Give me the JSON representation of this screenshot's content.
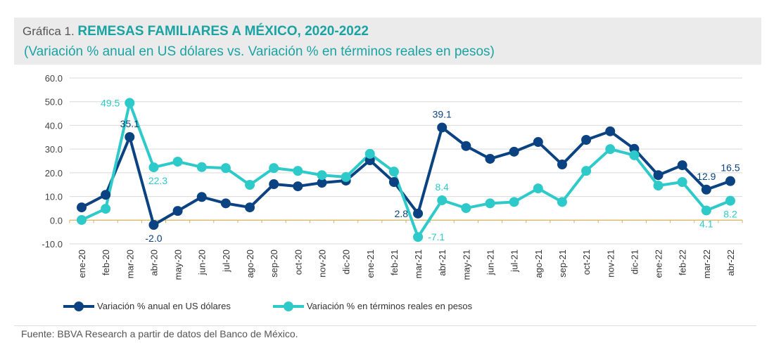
{
  "header": {
    "prefix": "Gráfica 1. ",
    "title": "REMESAS FAMILIARES A MÉXICO, 2020-2022",
    "subtitle": "(Variación % anual en US dólares vs. Variación % en términos reales en pesos)"
  },
  "source": "Fuente: BBVA Research a partir de datos del Banco de México.",
  "chart_data": {
    "type": "line",
    "title": "REMESAS FAMILIARES A MÉXICO, 2020-2022",
    "subtitle": "(Variación % anual en US dólares vs. Variación % en términos reales en pesos)",
    "xlabel": "",
    "ylabel": "",
    "ylim": [
      -10,
      60
    ],
    "yticks": [
      "60.0",
      "50.0",
      "40.0",
      "30.0",
      "20.0",
      "10.0",
      "0.0",
      "-10.0"
    ],
    "ytick_values": [
      60,
      50,
      40,
      30,
      20,
      10,
      0,
      -10
    ],
    "grid": true,
    "legend_position": "bottom",
    "categories": [
      "ene-20",
      "feb-20",
      "mar-20",
      "abr-20",
      "may-20",
      "jun-20",
      "jul-20",
      "ago-20",
      "sep-20",
      "oct-20",
      "nov-20",
      "dic-20",
      "ene-21",
      "feb-21",
      "mar-21",
      "abr-21",
      "may-21",
      "jun-21",
      "jul-21",
      "ago-21",
      "sep-21",
      "oct-21",
      "nov-21",
      "dic-21",
      "ene-22",
      "feb-22",
      "mar-22",
      "abr-22"
    ],
    "series": [
      {
        "name": "Variación % anual en US dólares",
        "color": "#0b4382",
        "values": [
          5.4,
          10.7,
          35.1,
          -2.0,
          3.9,
          9.8,
          7.1,
          5.4,
          15.2,
          14.3,
          15.8,
          16.7,
          25.3,
          16.1,
          2.8,
          39.1,
          31.3,
          25.9,
          28.9,
          33.0,
          23.5,
          33.9,
          37.5,
          30.1,
          19.0,
          23.2,
          12.9,
          16.5
        ]
      },
      {
        "name": "Variación % en términos reales en pesos",
        "color": "#2ec9c9",
        "values": [
          0.1,
          4.8,
          49.5,
          22.3,
          24.7,
          22.4,
          22.0,
          14.9,
          22.0,
          20.8,
          19.0,
          18.2,
          28.0,
          20.5,
          -7.1,
          8.4,
          5.1,
          7.1,
          7.7,
          13.4,
          7.7,
          20.8,
          30.0,
          27.4,
          14.6,
          16.1,
          4.1,
          8.2
        ]
      }
    ],
    "data_labels": [
      {
        "series": 0,
        "index": 2,
        "text": "35.1",
        "position": "above"
      },
      {
        "series": 0,
        "index": 3,
        "text": "-2.0",
        "position": "below"
      },
      {
        "series": 0,
        "index": 14,
        "text": "2.8",
        "position": "left"
      },
      {
        "series": 0,
        "index": 15,
        "text": "39.1",
        "position": "above"
      },
      {
        "series": 0,
        "index": 26,
        "text": "12.9",
        "position": "above"
      },
      {
        "series": 0,
        "index": 27,
        "text": "16.5",
        "position": "above"
      },
      {
        "series": 1,
        "index": 2,
        "text": "49.5",
        "position": "left"
      },
      {
        "series": 1,
        "index": 3,
        "text": "22.3",
        "position": "below"
      },
      {
        "series": 1,
        "index": 14,
        "text": "-7.1",
        "position": "right"
      },
      {
        "series": 1,
        "index": 15,
        "text": "8.4",
        "position": "above"
      },
      {
        "series": 1,
        "index": 26,
        "text": "4.1",
        "position": "below"
      },
      {
        "series": 1,
        "index": 27,
        "text": "8.2",
        "position": "below"
      }
    ],
    "zero_line_color": "#d4b25a"
  }
}
